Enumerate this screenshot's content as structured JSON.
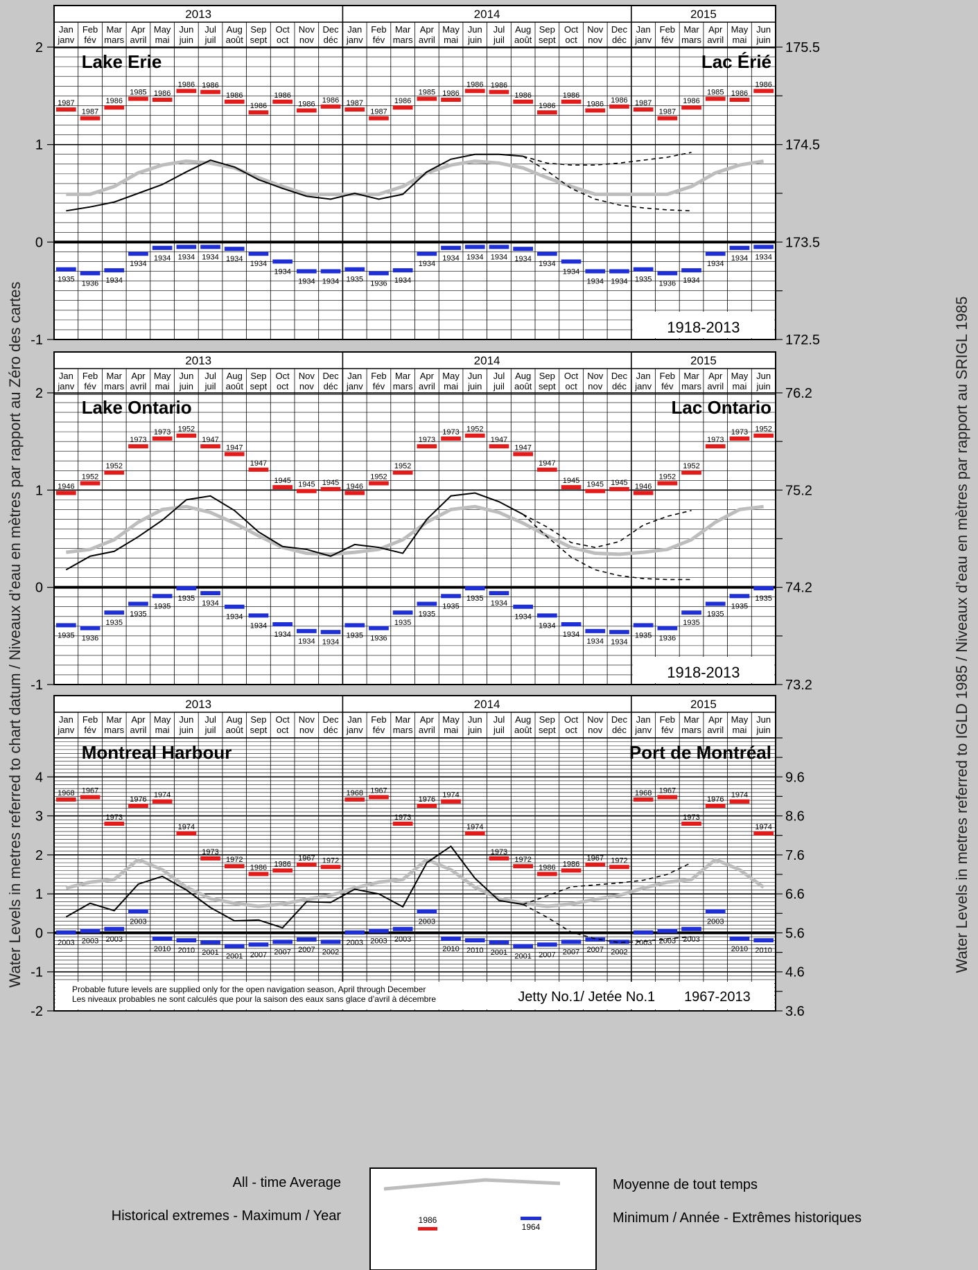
{
  "axis_titles": {
    "left": "Water Levels in metres referred to chart datum / Niveaux d’eau en mètres par rapport au Zéro des cartes",
    "right": "Water Levels in metres referred to IGLD 1985 / Niveaux d’eau en mètres par rapport au SRIGL 1985"
  },
  "years": [
    "2013",
    "2014",
    "2015"
  ],
  "months": [
    [
      "Jan",
      "janv"
    ],
    [
      "Feb",
      "fév"
    ],
    [
      "Mar",
      "mars"
    ],
    [
      "Apr",
      "avril"
    ],
    [
      "May",
      "mai"
    ],
    [
      "Jun",
      "juin"
    ],
    [
      "Jul",
      "juil"
    ],
    [
      "Aug",
      "août"
    ],
    [
      "Sep",
      "sept"
    ],
    [
      "Oct",
      "oct"
    ],
    [
      "Nov",
      "nov"
    ],
    [
      "Dec",
      "déc"
    ]
  ],
  "footnote": {
    "line1": "Probable future levels are supplied only for the open navigation season, April through December",
    "line2": "Les niveaux probables ne sont calculés que pour la saison des eaux sans glace d’avril à décembre",
    "station": "Jetty No.1/ Jetée No.1",
    "period": "1967-2013"
  },
  "legend": {
    "avg_en": "All - time Average",
    "avg_fr": "Moyenne de tout temps",
    "ext_en": "Historical extremes - Maximum / Year",
    "ext_fr": "Minimum / Année - Extrêmes historiques",
    "max_year": "1986",
    "min_year": "1964",
    "avg_color": "#bdbdbd",
    "max_color": "#e21b1b",
    "min_color": "#1f2fd6"
  },
  "chart_data": [
    {
      "type": "line",
      "title_en": "Lake Erie",
      "title_fr": "Lac Érié",
      "period": "1918-2013",
      "ylim": [
        -1,
        2
      ],
      "y_ticks": [
        "-1",
        "0",
        "1",
        "2"
      ],
      "y2_ticks": [
        "172.5",
        "173.5",
        "174.5",
        "175.5"
      ],
      "average": [
        0.49,
        0.49,
        0.57,
        0.71,
        0.79,
        0.83,
        0.81,
        0.76,
        0.66,
        0.57,
        0.49,
        0.49
      ],
      "max_values": [
        1.36,
        1.27,
        1.38,
        1.47,
        1.46,
        1.55,
        1.54,
        1.44,
        1.33,
        1.44,
        1.35,
        1.39
      ],
      "max_years": [
        "1987",
        "1987",
        "1986",
        "1985",
        "1986",
        "1986",
        "1986",
        "1986",
        "1986",
        "1986",
        "1986",
        "1986"
      ],
      "min_values": [
        -0.28,
        -0.32,
        -0.29,
        -0.12,
        -0.06,
        -0.05,
        -0.05,
        -0.07,
        -0.12,
        -0.2,
        -0.3,
        -0.3
      ],
      "min_years": [
        "1935",
        "1936",
        "1934",
        "1934",
        "1934",
        "1934",
        "1934",
        "1934",
        "1934",
        "1934",
        "1934",
        "1934"
      ],
      "recorded": [
        0.32,
        0.36,
        0.41,
        0.5,
        0.59,
        0.72,
        0.84,
        0.77,
        0.64,
        0.55,
        0.47,
        0.44,
        0.5,
        0.44,
        0.49,
        0.72,
        0.85,
        0.9,
        0.9,
        0.88
      ],
      "forecast_high": [
        0.88,
        0.81,
        0.79,
        0.79,
        0.81,
        0.84,
        0.87,
        0.92
      ],
      "forecast_low": [
        0.88,
        0.73,
        0.55,
        0.44,
        0.38,
        0.35,
        0.33,
        0.32
      ]
    },
    {
      "type": "line",
      "title_en": "Lake Ontario",
      "title_fr": "Lac Ontario",
      "period": "1918-2013",
      "ylim": [
        -1,
        2
      ],
      "y_ticks": [
        "-1",
        "0",
        "1",
        "2"
      ],
      "y2_ticks": [
        "73.2",
        "74.2",
        "75.2",
        "76.2"
      ],
      "average": [
        0.36,
        0.39,
        0.49,
        0.67,
        0.8,
        0.83,
        0.77,
        0.66,
        0.53,
        0.41,
        0.35,
        0.34
      ],
      "max_values": [
        0.97,
        1.07,
        1.18,
        1.45,
        1.53,
        1.56,
        1.45,
        1.37,
        1.21,
        1.03,
        0.99,
        1.01
      ],
      "max_years": [
        "1946",
        "1952",
        "1952",
        "1973",
        "1973",
        "1952",
        "1947",
        "1947",
        "1947",
        "1945",
        "1945",
        "1945"
      ],
      "min_values": [
        -0.39,
        -0.42,
        -0.26,
        -0.17,
        -0.09,
        -0.01,
        -0.06,
        -0.2,
        -0.29,
        -0.38,
        -0.45,
        -0.46
      ],
      "min_years": [
        "1935",
        "1936",
        "1935",
        "1935",
        "1935",
        "1935",
        "1934",
        "1934",
        "1934",
        "1934",
        "1934",
        "1934"
      ],
      "recorded": [
        0.18,
        0.32,
        0.37,
        0.52,
        0.69,
        0.9,
        0.94,
        0.79,
        0.57,
        0.42,
        0.39,
        0.32,
        0.44,
        0.41,
        0.35,
        0.7,
        0.94,
        0.97,
        0.88,
        0.75
      ],
      "forecast_high": [
        0.75,
        0.62,
        0.46,
        0.41,
        0.47,
        0.64,
        0.73,
        0.79
      ],
      "forecast_low": [
        0.75,
        0.52,
        0.31,
        0.18,
        0.12,
        0.09,
        0.08,
        0.08
      ]
    },
    {
      "type": "line",
      "title_en": "Montreal Harbour",
      "title_fr": "Port de Montréal",
      "period": "1967-2013",
      "ylim": [
        -2,
        5
      ],
      "y_ticks": [
        "-2",
        "-1",
        "0",
        "1",
        "2",
        "3",
        "4"
      ],
      "y2_ticks": [
        "3.6",
        "4.6",
        "5.6",
        "6.6",
        "7.6",
        "8.6",
        "9.6"
      ],
      "average": [
        1.15,
        1.3,
        1.37,
        1.88,
        1.62,
        1.17,
        0.88,
        0.76,
        0.68,
        0.74,
        0.86,
        0.96
      ],
      "max_values": [
        3.42,
        3.48,
        2.8,
        3.26,
        3.37,
        2.55,
        1.91,
        1.71,
        1.51,
        1.6,
        1.75,
        1.69
      ],
      "max_years": [
        "1968",
        "1967",
        "1973",
        "1976",
        "1974",
        "1974",
        "1973",
        "1972",
        "1986",
        "1986",
        "1967",
        "1972"
      ],
      "min_values": [
        0.01,
        0.05,
        0.1,
        0.55,
        -0.15,
        -0.19,
        -0.24,
        -0.34,
        -0.3,
        -0.23,
        -0.17,
        -0.23
      ],
      "min_years": [
        "2003",
        "2003",
        "2003",
        "2003",
        "2010",
        "2010",
        "2001",
        "2001",
        "2007",
        "2007",
        "2007",
        "2002"
      ],
      "recorded": [
        0.41,
        0.76,
        0.57,
        1.25,
        1.45,
        1.1,
        0.65,
        0.31,
        0.33,
        0.13,
        0.8,
        0.78,
        1.12,
        1.0,
        0.67,
        1.8,
        2.22,
        1.4,
        0.83,
        0.73
      ],
      "forecast_high": [
        0.73,
        0.95,
        1.18,
        1.23,
        1.28,
        1.35,
        1.5,
        1.8
      ],
      "forecast_low": [
        0.73,
        0.4,
        0.02,
        -0.15,
        -0.25,
        -0.22,
        -0.15,
        -0.1
      ]
    }
  ]
}
